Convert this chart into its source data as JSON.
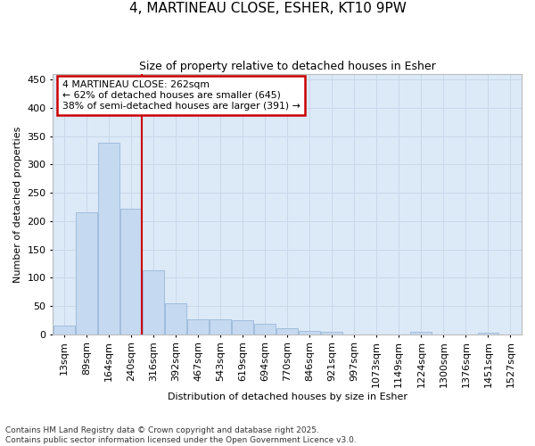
{
  "title_line1": "4, MARTINEAU CLOSE, ESHER, KT10 9PW",
  "title_line2": "Size of property relative to detached houses in Esher",
  "xlabel": "Distribution of detached houses by size in Esher",
  "ylabel": "Number of detached properties",
  "categories": [
    "13sqm",
    "89sqm",
    "164sqm",
    "240sqm",
    "316sqm",
    "392sqm",
    "467sqm",
    "543sqm",
    "619sqm",
    "694sqm",
    "770sqm",
    "846sqm",
    "921sqm",
    "997sqm",
    "1073sqm",
    "1149sqm",
    "1224sqm",
    "1300sqm",
    "1376sqm",
    "1451sqm",
    "1527sqm"
  ],
  "values": [
    15,
    216,
    338,
    222,
    113,
    54,
    27,
    26,
    25,
    19,
    10,
    6,
    5,
    0,
    0,
    0,
    4,
    0,
    0,
    2,
    0
  ],
  "bar_color": "#c5d9f0",
  "bar_edge_color": "#9ab8d8",
  "vline_color": "#cc0000",
  "vline_position": 3.5,
  "annotation_text_line1": "4 MARTINEAU CLOSE: 262sqm",
  "annotation_text_line2": "← 62% of detached houses are smaller (645)",
  "annotation_text_line3": "38% of semi-detached houses are larger (391) →",
  "annotation_box_color": "#cc0000",
  "annotation_bg_color": "#ffffff",
  "ylim": [
    0,
    460
  ],
  "yticks": [
    0,
    50,
    100,
    150,
    200,
    250,
    300,
    350,
    400,
    450
  ],
  "grid_color": "#c8d8ea",
  "bg_color": "#dce9f7",
  "footnote_line1": "Contains HM Land Registry data © Crown copyright and database right 2025.",
  "footnote_line2": "Contains public sector information licensed under the Open Government Licence v3.0."
}
